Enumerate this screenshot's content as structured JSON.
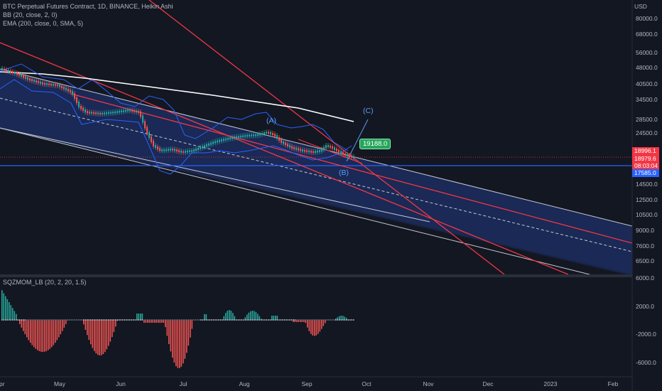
{
  "legend": {
    "symbol": "BTC Perpetual Futures Contract, 1D, BINANCE, Heikin Ashi",
    "bb": "BB (20, close, 2, 0)",
    "ema": "EMA (200, close, 0, SMA, 5)",
    "oscillator": "SQZMOM_LB (20, 2, 20, 1.5)"
  },
  "price_axis": {
    "currency": "USD",
    "ticks": [
      "80000.0",
      "68000.0",
      "56000.0",
      "48000.0",
      "40500.0",
      "34500.0",
      "28500.0",
      "24500.0",
      "14500.0",
      "12500.0",
      "10500.0",
      "9000.0",
      "7600.0",
      "6500.0"
    ],
    "tags": {
      "last_price": "18996.1",
      "bar_close": "18979.6",
      "countdown": "08:03:04",
      "support": "17585.0"
    }
  },
  "osc_axis": {
    "ticks": [
      "6000.0",
      "2000.0",
      "-2000.0",
      "-6000.0"
    ]
  },
  "time_axis": {
    "ticks": [
      "Apr",
      "May",
      "Jun",
      "Jul",
      "Aug",
      "Sep",
      "Oct",
      "Nov",
      "Dec",
      "2023",
      "Feb"
    ]
  },
  "annotations": {
    "callout": "19188.0",
    "wave_a": "(A)",
    "wave_b": "(B)",
    "wave_c": "(C)"
  },
  "colors": {
    "background": "#131722",
    "channel_fill": "#1c2c5c",
    "trendline_red": "#f23645",
    "bull_candle": "#26a69a",
    "bear_candle": "#ef5350",
    "bb": "#2962ff",
    "ema": "#ffffff",
    "support_line": "#2962ff",
    "callout": "#26a65b",
    "mom_green": "#26a69a",
    "mom_red": "#ef5350"
  }
}
